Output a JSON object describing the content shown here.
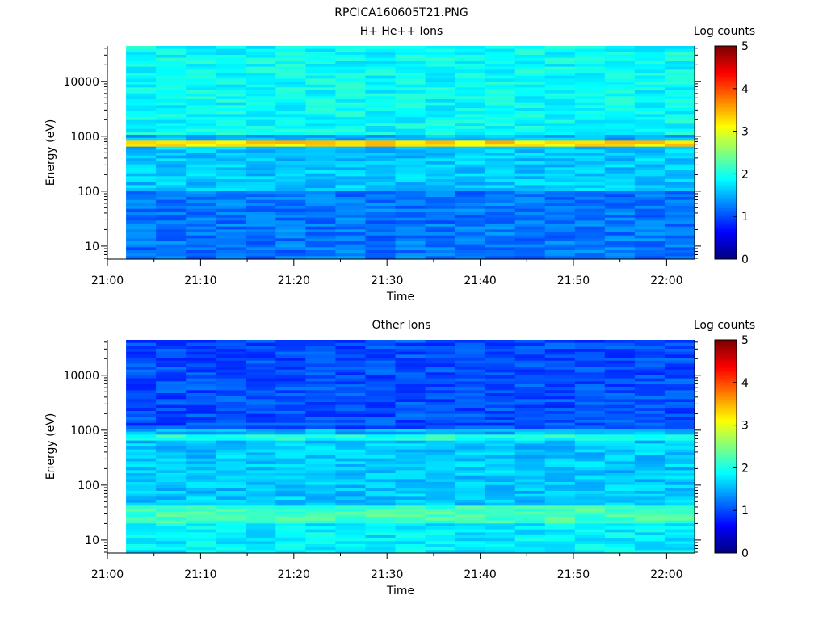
{
  "page_title": "RPCICA160605T21.PNG",
  "chart_data": [
    {
      "type": "heatmap",
      "title": "H+ He++ Ions",
      "xlabel": "Time",
      "ylabel": "Energy (eV)",
      "yscale": "log",
      "ylim": [
        5.8,
        44000
      ],
      "yticks": [
        10,
        100,
        1000,
        10000
      ],
      "ytick_labels": [
        "10",
        "100",
        "1000",
        "10000"
      ],
      "xticks": [
        "21:00",
        "21:10",
        "21:20",
        "21:30",
        "21:40",
        "21:50",
        "22:00"
      ],
      "x_range": [
        "21:00",
        "22:03"
      ],
      "data_start": "21:02",
      "colorbar": {
        "label": "Log counts",
        "min": 0,
        "max": 5,
        "ticks": [
          "0",
          "1",
          "2",
          "3",
          "4",
          "5"
        ],
        "colormap": "jet"
      },
      "grid": false,
      "band_summary": [
        {
          "energy_range_eV": [
            1000,
            44000
          ],
          "log_counts": 1.9
        },
        {
          "energy_range_eV": [
            650,
            850
          ],
          "log_counts": 3.3
        },
        {
          "energy_range_eV": [
            100,
            650
          ],
          "log_counts": 1.6
        },
        {
          "energy_range_eV": [
            5.8,
            100
          ],
          "log_counts": 1.2
        }
      ]
    },
    {
      "type": "heatmap",
      "title": "Other Ions",
      "xlabel": "Time",
      "ylabel": "Energy (eV)",
      "yscale": "log",
      "ylim": [
        5.8,
        44000
      ],
      "yticks": [
        10,
        100,
        1000,
        10000
      ],
      "ytick_labels": [
        "10",
        "100",
        "1000",
        "10000"
      ],
      "xticks": [
        "21:00",
        "21:10",
        "21:20",
        "21:30",
        "21:40",
        "21:50",
        "22:00"
      ],
      "x_range": [
        "21:00",
        "22:03"
      ],
      "data_start": "21:02",
      "colorbar": {
        "label": "Log counts",
        "min": 0,
        "max": 5,
        "ticks": [
          "0",
          "1",
          "2",
          "3",
          "4",
          "5"
        ],
        "colormap": "jet"
      },
      "grid": false,
      "band_summary": [
        {
          "energy_range_eV": [
            1000,
            44000
          ],
          "log_counts": 1.0
        },
        {
          "energy_range_eV": [
            650,
            850
          ],
          "log_counts": 2.0
        },
        {
          "energy_range_eV": [
            40,
            650
          ],
          "log_counts": 1.6
        },
        {
          "energy_range_eV": [
            20,
            40
          ],
          "log_counts": 2.2
        },
        {
          "energy_range_eV": [
            5.8,
            20
          ],
          "log_counts": 1.8
        }
      ]
    }
  ]
}
